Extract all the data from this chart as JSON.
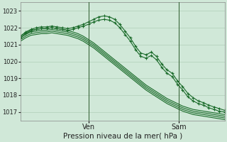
{
  "title": "Pression niveau de la mer( hPa )",
  "background_color": "#d0e8d8",
  "plot_bg_color": "#d0e8d8",
  "grid_color": "#b0cfb8",
  "line_color": "#1a6b2a",
  "vline_color": "#2a5a2a",
  "x_ticks_labels": [
    "Ven",
    "Sam"
  ],
  "x_ticks_pos": [
    0.335,
    0.775
  ],
  "ylim": [
    1016.5,
    1023.5
  ],
  "yticks": [
    1017,
    1018,
    1019,
    1020,
    1021,
    1022,
    1023
  ],
  "n_points": 40,
  "series_smooth": [
    [
      1021.5,
      1021.7,
      1021.85,
      1021.9,
      1021.95,
      1021.95,
      1022.0,
      1021.95,
      1021.9,
      1021.85,
      1021.75,
      1021.65,
      1021.5,
      1021.3,
      1021.1,
      1020.85,
      1020.6,
      1020.35,
      1020.1,
      1019.85,
      1019.6,
      1019.35,
      1019.1,
      1018.85,
      1018.6,
      1018.4,
      1018.2,
      1018.0,
      1017.8,
      1017.65,
      1017.5,
      1017.35,
      1017.25,
      1017.15,
      1017.1,
      1017.05,
      1017.0,
      1016.95,
      1016.9,
      1016.85
    ],
    [
      1021.4,
      1021.6,
      1021.75,
      1021.8,
      1021.85,
      1021.85,
      1021.9,
      1021.85,
      1021.8,
      1021.75,
      1021.65,
      1021.55,
      1021.4,
      1021.2,
      1021.0,
      1020.75,
      1020.5,
      1020.25,
      1020.0,
      1019.75,
      1019.5,
      1019.25,
      1019.0,
      1018.75,
      1018.5,
      1018.3,
      1018.1,
      1017.9,
      1017.7,
      1017.55,
      1017.4,
      1017.25,
      1017.15,
      1017.05,
      1017.0,
      1016.95,
      1016.9,
      1016.85,
      1016.8,
      1016.75
    ],
    [
      1021.3,
      1021.5,
      1021.65,
      1021.7,
      1021.75,
      1021.75,
      1021.8,
      1021.75,
      1021.7,
      1021.65,
      1021.55,
      1021.45,
      1021.3,
      1021.1,
      1020.9,
      1020.65,
      1020.4,
      1020.15,
      1019.9,
      1019.65,
      1019.4,
      1019.15,
      1018.9,
      1018.65,
      1018.4,
      1018.2,
      1018.0,
      1017.8,
      1017.6,
      1017.45,
      1017.3,
      1017.15,
      1017.05,
      1016.95,
      1016.9,
      1016.85,
      1016.8,
      1016.75,
      1016.7,
      1016.65
    ],
    [
      1021.2,
      1021.4,
      1021.55,
      1021.6,
      1021.65,
      1021.65,
      1021.7,
      1021.65,
      1021.6,
      1021.55,
      1021.45,
      1021.35,
      1021.2,
      1021.0,
      1020.8,
      1020.55,
      1020.3,
      1020.05,
      1019.8,
      1019.55,
      1019.3,
      1019.05,
      1018.8,
      1018.55,
      1018.3,
      1018.1,
      1017.9,
      1017.7,
      1017.5,
      1017.35,
      1017.2,
      1017.05,
      1016.95,
      1016.85,
      1016.8,
      1016.75,
      1016.7,
      1016.65,
      1016.6,
      1016.55
    ]
  ],
  "series_marked1": [
    1021.5,
    1021.75,
    1021.9,
    1022.0,
    1022.05,
    1022.05,
    1022.1,
    1022.05,
    1022.0,
    1021.95,
    1022.0,
    1022.1,
    1022.2,
    1022.35,
    1022.5,
    1022.65,
    1022.7,
    1022.65,
    1022.5,
    1022.2,
    1021.8,
    1021.4,
    1020.9,
    1020.5,
    1020.4,
    1020.55,
    1020.3,
    1019.85,
    1019.5,
    1019.3,
    1018.85,
    1018.5,
    1018.1,
    1017.85,
    1017.65,
    1017.55,
    1017.4,
    1017.3,
    1017.2,
    1017.1
  ],
  "series_marked2": [
    1021.4,
    1021.65,
    1021.8,
    1021.9,
    1021.95,
    1021.95,
    1022.0,
    1021.95,
    1021.9,
    1021.85,
    1021.9,
    1022.0,
    1022.1,
    1022.2,
    1022.35,
    1022.45,
    1022.5,
    1022.45,
    1022.3,
    1022.0,
    1021.6,
    1021.2,
    1020.7,
    1020.3,
    1020.2,
    1020.35,
    1020.1,
    1019.65,
    1019.3,
    1019.1,
    1018.65,
    1018.3,
    1017.9,
    1017.65,
    1017.5,
    1017.4,
    1017.25,
    1017.15,
    1017.05,
    1017.0
  ]
}
